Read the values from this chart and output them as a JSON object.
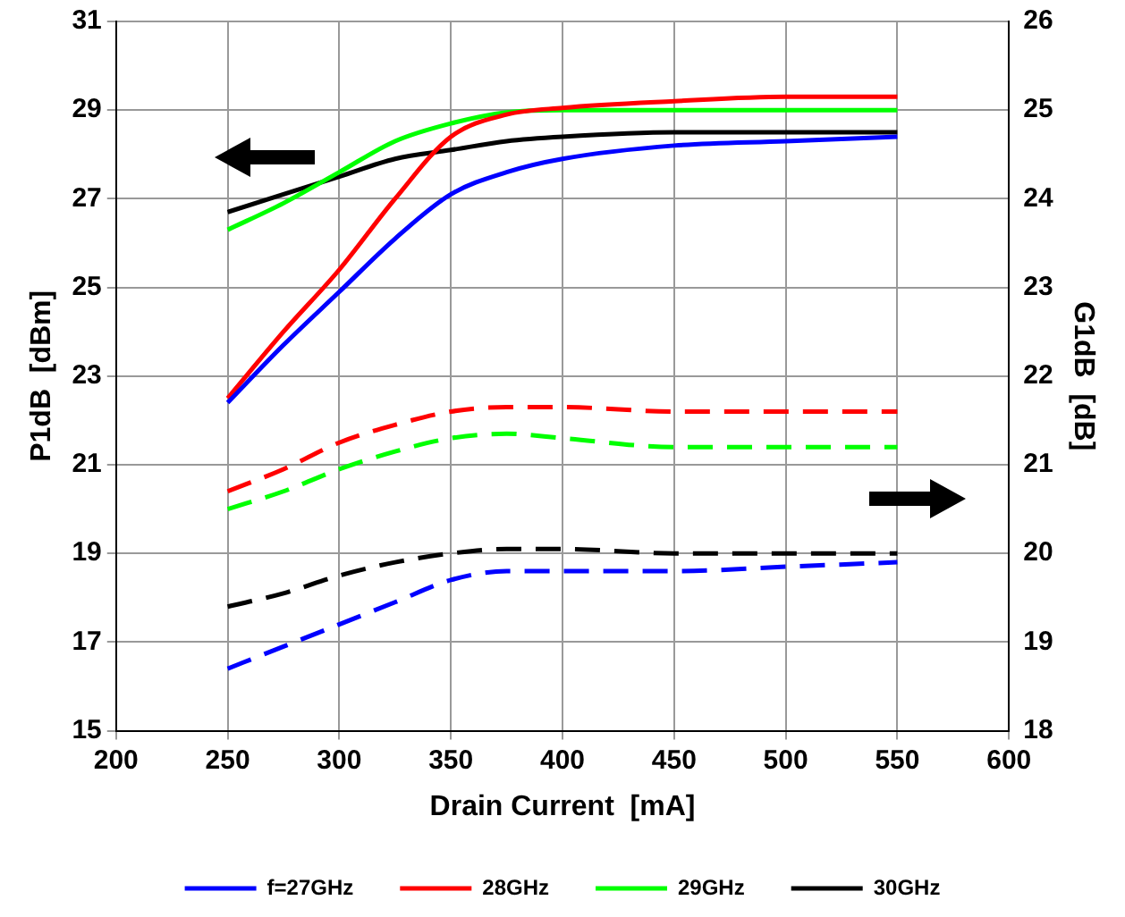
{
  "chart_data": {
    "type": "line",
    "xlabel": "Drain Current  [mA]",
    "ylabel": "P1dB  [dBm]",
    "y2label": "G1dB  [dB]",
    "x": [
      250,
      275,
      300,
      325,
      350,
      375,
      400,
      450,
      500,
      550
    ],
    "xlim": [
      200,
      600
    ],
    "xticks": [
      200,
      250,
      300,
      350,
      400,
      450,
      500,
      550,
      600
    ],
    "ylim": [
      15,
      31
    ],
    "yticks": [
      15,
      17,
      19,
      21,
      23,
      25,
      27,
      29,
      31
    ],
    "y2lim": [
      18,
      26
    ],
    "y2ticks": [
      18,
      19,
      20,
      21,
      22,
      23,
      24,
      25,
      26
    ],
    "grid": true,
    "legend": "bottom",
    "marker": "none",
    "series": [
      {
        "name": "f=27GHz",
        "color": "#0000ff",
        "line_style": "solid",
        "values": [
          22.4,
          23.7,
          24.9,
          26.1,
          27.1,
          27.6,
          27.9,
          28.2,
          28.3,
          28.4
        ]
      },
      {
        "name": "28GHz",
        "color": "#ff0000",
        "line_style": "solid",
        "values": [
          22.5,
          24.0,
          25.4,
          27.0,
          28.4,
          28.9,
          29.05,
          29.2,
          29.3,
          29.3
        ]
      },
      {
        "name": "29GHz",
        "color": "#00ff00",
        "line_style": "solid",
        "values": [
          26.3,
          26.9,
          27.6,
          28.3,
          28.7,
          28.95,
          29.0,
          29.0,
          29.0,
          29.0
        ]
      },
      {
        "name": "30GHz",
        "color": "#000000",
        "line_style": "solid",
        "values": [
          26.7,
          27.1,
          27.5,
          27.9,
          28.1,
          28.3,
          28.4,
          28.5,
          28.5,
          28.5
        ]
      },
      {
        "color": "#0000ff",
        "line_style": "dashed",
        "axis": "y2",
        "values": [
          18.7,
          18.95,
          19.2,
          19.45,
          19.7,
          19.8,
          19.8,
          19.8,
          19.85,
          19.9
        ]
      },
      {
        "color": "#ff0000",
        "line_style": "dashed",
        "axis": "y2",
        "values": [
          20.7,
          20.95,
          21.25,
          21.45,
          21.6,
          21.65,
          21.65,
          21.6,
          21.6,
          21.6
        ]
      },
      {
        "color": "#00ff00",
        "line_style": "dashed",
        "axis": "y2",
        "values": [
          20.5,
          20.7,
          20.95,
          21.15,
          21.3,
          21.35,
          21.3,
          21.2,
          21.2,
          21.2
        ]
      },
      {
        "color": "#000000",
        "line_style": "dashed",
        "axis": "y2",
        "values": [
          19.4,
          19.55,
          19.75,
          19.9,
          20.0,
          20.05,
          20.05,
          20.0,
          20.0,
          20.0
        ]
      }
    ]
  }
}
